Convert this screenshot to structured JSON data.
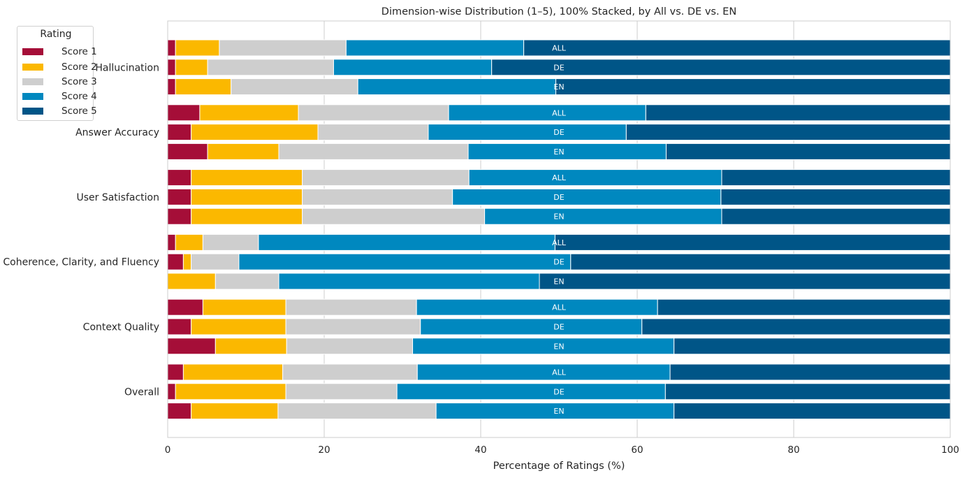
{
  "chart_data": {
    "type": "bar",
    "orientation": "horizontal",
    "stacked": "100%",
    "title": "Dimension-wise Distribution (1–5), 100% Stacked, by All vs. DE vs. EN",
    "xlabel": "Percentage of Ratings (%)",
    "ylabel": "",
    "xlim": [
      0,
      100
    ],
    "xticks": [
      0,
      20,
      40,
      60,
      80,
      100
    ],
    "grid": "vertical",
    "legend": {
      "title": "Rating",
      "placement": "upper-left",
      "entries": [
        "Score 1",
        "Score 2",
        "Score 3",
        "Score 4",
        "Score 5"
      ]
    },
    "colors": [
      "#A50E38",
      "#FBB800",
      "#CECECE",
      "#0088BF",
      "#005587"
    ],
    "series_names": [
      "Score 1",
      "Score 2",
      "Score 3",
      "Score 4",
      "Score 5"
    ],
    "groups": [
      {
        "label": "Hallucination",
        "bars": [
          {
            "label": "ALL",
            "values": [
              1.0,
              5.6,
              16.2,
              22.7,
              54.5
            ]
          },
          {
            "label": "DE",
            "values": [
              1.0,
              4.1,
              16.1,
              20.2,
              58.6
            ]
          },
          {
            "label": "EN",
            "values": [
              1.0,
              7.1,
              16.2,
              25.3,
              50.4
            ]
          }
        ]
      },
      {
        "label": "Answer Accuracy",
        "bars": [
          {
            "label": "ALL",
            "values": [
              4.1,
              12.6,
              19.2,
              25.2,
              38.9
            ]
          },
          {
            "label": "DE",
            "values": [
              3.0,
              16.2,
              14.1,
              25.3,
              41.4
            ]
          },
          {
            "label": "EN",
            "values": [
              5.1,
              9.1,
              24.2,
              25.3,
              36.3
            ]
          }
        ]
      },
      {
        "label": "User Satisfaction",
        "bars": [
          {
            "label": "ALL",
            "values": [
              3.0,
              14.2,
              21.3,
              32.3,
              29.2
            ]
          },
          {
            "label": "DE",
            "values": [
              3.0,
              14.2,
              19.2,
              34.3,
              29.3
            ]
          },
          {
            "label": "EN",
            "values": [
              3.0,
              14.2,
              23.3,
              30.3,
              29.2
            ]
          }
        ]
      },
      {
        "label": "Coherence, Clarity, and Fluency",
        "bars": [
          {
            "label": "ALL",
            "values": [
              1.0,
              3.5,
              7.1,
              37.9,
              50.5
            ]
          },
          {
            "label": "DE",
            "values": [
              2.0,
              1.0,
              6.1,
              42.4,
              48.5
            ]
          },
          {
            "label": "EN",
            "values": [
              0.0,
              6.1,
              8.1,
              33.3,
              52.5
            ]
          }
        ]
      },
      {
        "label": "Context Quality",
        "bars": [
          {
            "label": "ALL",
            "values": [
              4.5,
              10.6,
              16.7,
              30.8,
              37.4
            ]
          },
          {
            "label": "DE",
            "values": [
              3.0,
              12.1,
              17.2,
              28.3,
              39.4
            ]
          },
          {
            "label": "EN",
            "values": [
              6.1,
              9.1,
              16.1,
              33.4,
              35.3
            ]
          }
        ]
      },
      {
        "label": "Overall",
        "bars": [
          {
            "label": "ALL",
            "values": [
              2.0,
              12.7,
              17.2,
              32.3,
              35.8
            ]
          },
          {
            "label": "DE",
            "values": [
              1.0,
              14.1,
              14.2,
              34.3,
              36.4
            ]
          },
          {
            "label": "EN",
            "values": [
              3.0,
              11.1,
              20.2,
              30.4,
              35.3
            ]
          }
        ]
      }
    ]
  }
}
